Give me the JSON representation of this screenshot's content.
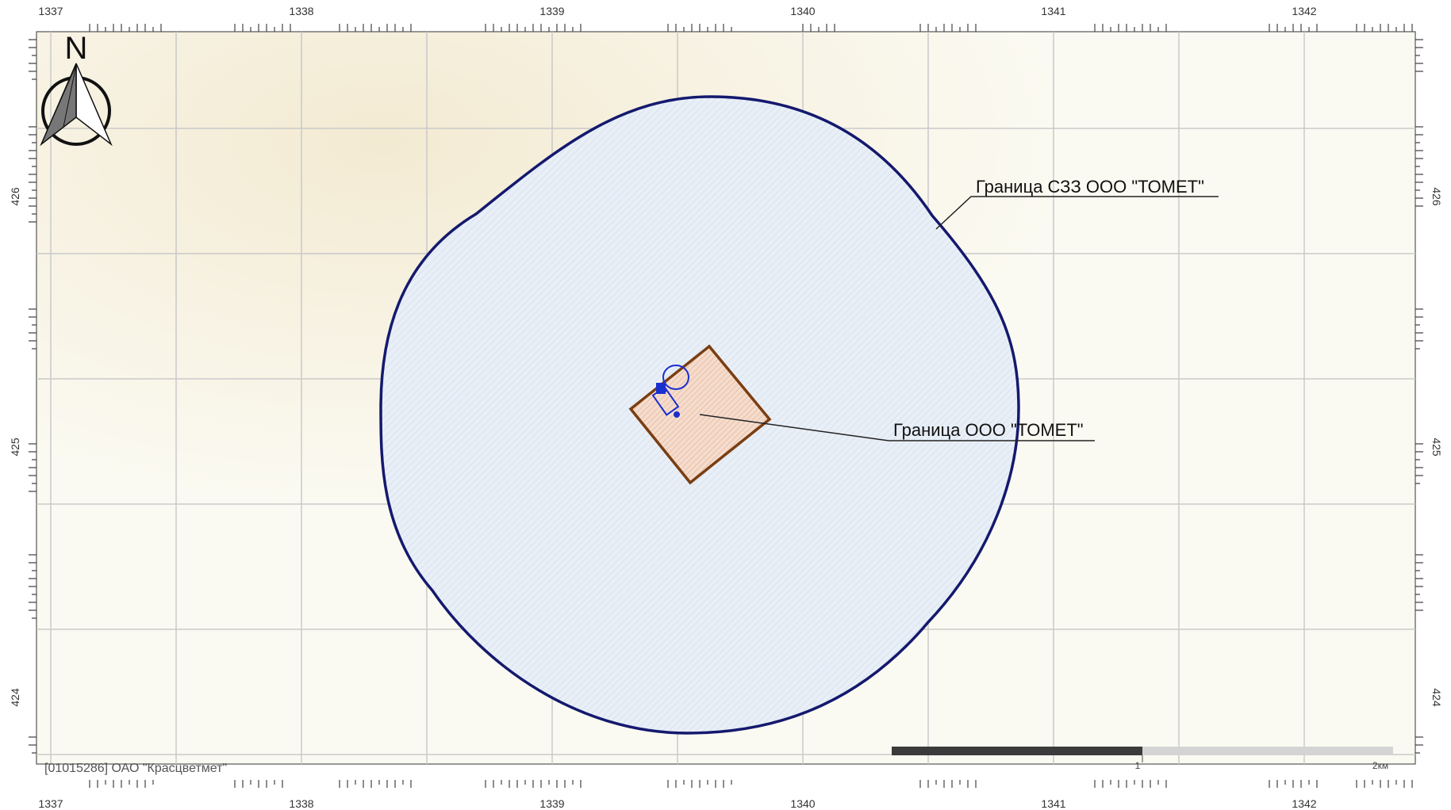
{
  "map": {
    "x_ticks": [
      "1337",
      "1338",
      "1339",
      "1340",
      "1341",
      "1342"
    ],
    "y_ticks": [
      "426",
      "425",
      "424"
    ],
    "north_label": "N",
    "sanitary_zone_label": "Граница СЗЗ ООО \"ТОМЕТ\"",
    "site_label": "Граница ООО \"ТОМЕТ\"",
    "organization": "[01015286] ОАО \"Красцветмет\"",
    "scale": {
      "mid_label": "1",
      "end_label": "2км"
    },
    "colors": {
      "background": "#fbfaf2",
      "grid": "#c9c9c9",
      "zone_stroke": "#14196e",
      "zone_fill": "#e8eef6",
      "site_stroke": "#7a3e12",
      "site_fill": "#f3d5c3",
      "source": "#1a2fd0"
    }
  }
}
